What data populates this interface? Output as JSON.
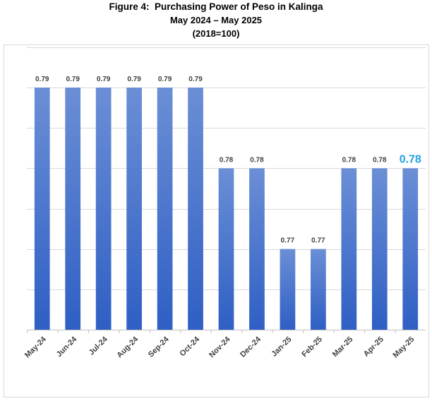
{
  "title": {
    "line1": "Figure 4:  Purchasing Power of Peso in Kalinga",
    "line2": "May 2024 – May 2025",
    "line3": "(2018=100)"
  },
  "chart_data": {
    "type": "bar",
    "categories": [
      "May-24",
      "Jun-24",
      "Jul-24",
      "Aug-24",
      "Sep-24",
      "Oct-24",
      "Nov-24",
      "Dec-24",
      "Jan-25",
      "Feb-25",
      "Mar-25",
      "Apr-25",
      "May-25"
    ],
    "values": [
      0.79,
      0.79,
      0.79,
      0.79,
      0.79,
      0.79,
      0.78,
      0.78,
      0.77,
      0.77,
      0.78,
      0.78,
      0.78
    ],
    "data_labels": [
      "0.79",
      "0.79",
      "0.79",
      "0.79",
      "0.79",
      "0.79",
      "0.78",
      "0.78",
      "0.77",
      "0.77",
      "0.78",
      "0.78",
      "0.78"
    ],
    "highlight_index": 12,
    "ylim": [
      0.76,
      0.79
    ],
    "grid": true,
    "y_tick_labels_shown": false,
    "bar_color_top": "#6b8fd6",
    "bar_color_bottom": "#2f5fc4",
    "label_color": "#404040",
    "highlight_label_color": "#1fa2e0",
    "gridline_color": "#d9d9d9"
  }
}
